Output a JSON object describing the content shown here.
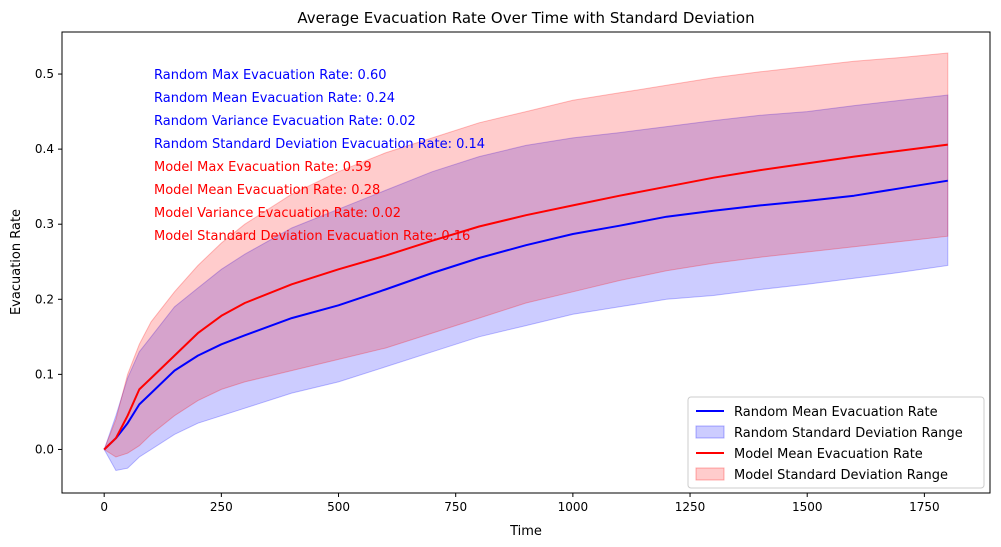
{
  "chart_data": {
    "type": "line",
    "title": "Average Evacuation Rate Over Time with Standard Deviation",
    "xlabel": "Time",
    "ylabel": "Evacuation Rate",
    "xlim": [
      -90,
      1890
    ],
    "ylim": [
      -0.058,
      0.556
    ],
    "xticks": [
      0,
      250,
      500,
      750,
      1000,
      1250,
      1500,
      1750
    ],
    "yticks": [
      0.0,
      0.1,
      0.2,
      0.3,
      0.4,
      0.5
    ],
    "xtick_labels": [
      "0",
      "250",
      "500",
      "750",
      "1000",
      "1250",
      "1500",
      "1750"
    ],
    "ytick_labels": [
      "0.0",
      "0.1",
      "0.2",
      "0.3",
      "0.4",
      "0.5"
    ],
    "grid": false,
    "legend_position": "bottom-right",
    "colors": {
      "random": "#0000ff",
      "model": "#ff0000",
      "random_band": "#0000ff",
      "model_band": "#ff0000"
    },
    "series": [
      {
        "name": "Random Mean Evacuation Rate",
        "color": "#0000ff",
        "x": [
          0,
          25,
          50,
          75,
          100,
          150,
          200,
          250,
          300,
          400,
          500,
          600,
          700,
          800,
          900,
          1000,
          1100,
          1200,
          1300,
          1400,
          1500,
          1600,
          1700,
          1800
        ],
        "values": [
          0.0,
          0.015,
          0.035,
          0.06,
          0.075,
          0.105,
          0.125,
          0.14,
          0.152,
          0.175,
          0.192,
          0.213,
          0.235,
          0.255,
          0.272,
          0.287,
          0.298,
          0.31,
          0.318,
          0.325,
          0.331,
          0.338,
          0.348,
          0.358
        ]
      },
      {
        "name": "Model Mean Evacuation Rate",
        "color": "#ff0000",
        "x": [
          0,
          25,
          50,
          75,
          100,
          150,
          200,
          250,
          300,
          400,
          500,
          600,
          700,
          800,
          900,
          1000,
          1100,
          1200,
          1300,
          1400,
          1500,
          1600,
          1700,
          1800
        ],
        "values": [
          0.0,
          0.015,
          0.045,
          0.08,
          0.095,
          0.125,
          0.155,
          0.178,
          0.195,
          0.22,
          0.24,
          0.258,
          0.278,
          0.297,
          0.312,
          0.325,
          0.338,
          0.35,
          0.362,
          0.372,
          0.381,
          0.39,
          0.398,
          0.406
        ]
      }
    ],
    "bands": [
      {
        "name": "Random Standard Deviation Range",
        "color": "#0000ff",
        "x": [
          0,
          25,
          50,
          75,
          100,
          150,
          200,
          250,
          300,
          400,
          500,
          600,
          700,
          800,
          900,
          1000,
          1100,
          1200,
          1300,
          1400,
          1500,
          1600,
          1700,
          1800
        ],
        "upper": [
          0.0,
          0.045,
          0.095,
          0.13,
          0.15,
          0.19,
          0.215,
          0.24,
          0.26,
          0.295,
          0.32,
          0.345,
          0.37,
          0.39,
          0.405,
          0.415,
          0.422,
          0.43,
          0.438,
          0.445,
          0.45,
          0.458,
          0.465,
          0.472
        ],
        "lower": [
          0.0,
          -0.028,
          -0.025,
          -0.01,
          0.0,
          0.02,
          0.035,
          0.045,
          0.055,
          0.075,
          0.09,
          0.11,
          0.13,
          0.15,
          0.165,
          0.18,
          0.19,
          0.2,
          0.205,
          0.213,
          0.22,
          0.228,
          0.236,
          0.245
        ]
      },
      {
        "name": "Model Standard Deviation Range",
        "color": "#ff0000",
        "x": [
          0,
          25,
          50,
          75,
          100,
          150,
          200,
          250,
          300,
          400,
          500,
          600,
          700,
          800,
          900,
          1000,
          1100,
          1200,
          1300,
          1400,
          1500,
          1600,
          1700,
          1800
        ],
        "upper": [
          0.0,
          0.04,
          0.1,
          0.14,
          0.17,
          0.21,
          0.245,
          0.275,
          0.3,
          0.34,
          0.37,
          0.395,
          0.415,
          0.435,
          0.45,
          0.465,
          0.475,
          0.485,
          0.495,
          0.503,
          0.51,
          0.517,
          0.522,
          0.528
        ],
        "lower": [
          0.0,
          -0.01,
          -0.005,
          0.005,
          0.02,
          0.045,
          0.065,
          0.08,
          0.09,
          0.105,
          0.12,
          0.135,
          0.155,
          0.175,
          0.195,
          0.21,
          0.225,
          0.238,
          0.248,
          0.256,
          0.263,
          0.27,
          0.277,
          0.284
        ]
      }
    ],
    "annotations": [
      {
        "text": "Random Max Evacuation Rate: 0.60",
        "color": "#0000ff"
      },
      {
        "text": "Random Mean Evacuation Rate: 0.24",
        "color": "#0000ff"
      },
      {
        "text": "Random Variance Evacuation Rate: 0.02",
        "color": "#0000ff"
      },
      {
        "text": "Random Standard Deviation Evacuation Rate: 0.14",
        "color": "#0000ff"
      },
      {
        "text": "Model Max Evacuation Rate: 0.59",
        "color": "#ff0000"
      },
      {
        "text": "Model Mean Evacuation Rate: 0.28",
        "color": "#ff0000"
      },
      {
        "text": "Model Variance Evacuation Rate: 0.02",
        "color": "#ff0000"
      },
      {
        "text": "Model Standard Deviation Evacuation Rate: 0.16",
        "color": "#ff0000"
      }
    ],
    "legend": [
      {
        "label": "Random Mean Evacuation Rate",
        "kind": "line",
        "color": "#0000ff"
      },
      {
        "label": "Random Standard Deviation Range",
        "kind": "patch",
        "color": "#0000ff"
      },
      {
        "label": "Model Mean Evacuation Rate",
        "kind": "line",
        "color": "#ff0000"
      },
      {
        "label": "Model Standard Deviation Range",
        "kind": "patch",
        "color": "#ff0000"
      }
    ]
  }
}
